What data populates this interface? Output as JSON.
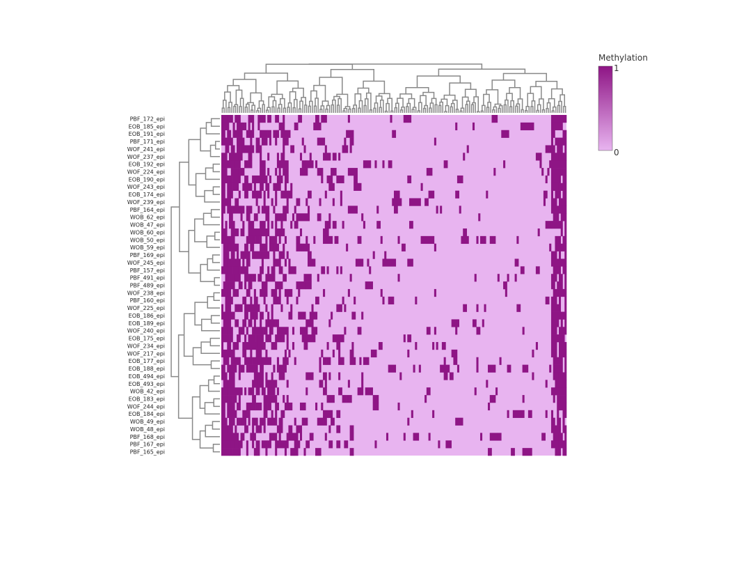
{
  "colors": {
    "low": "#e8b4f0",
    "high": "#8e1585",
    "tree": "#888888",
    "label": "#222222"
  },
  "chart_data": {
    "type": "heatmap",
    "title": "",
    "xlabel": "",
    "ylabel": "",
    "row_labels": [
      "PBF_172_epi",
      "EOB_185_epi",
      "EOB_191_epi",
      "PBF_171_epi",
      "WOF_241_epi",
      "WOF_237_epi",
      "EOB_192_epi",
      "WOF_224_epi",
      "EOB_190_epi",
      "WOF_243_epi",
      "EOB_174_epi",
      "WOF_239_epi",
      "PBF_164_epi",
      "WOB_62_epi",
      "WOB_47_epi",
      "WOB_60_epi",
      "WOB_50_epi",
      "WOB_59_epi",
      "PBF_169_epi",
      "WOF_245_epi",
      "PBF_157_epi",
      "PBF_491_epi",
      "PBF_489_epi",
      "WOF_238_epi",
      "PBF_160_epi",
      "WOF_225_epi",
      "EOB_186_epi",
      "EOB_189_epi",
      "WOF_240_epi",
      "EOB_175_epi",
      "WOF_234_epi",
      "WOF_217_epi",
      "EOB_177_epi",
      "EOB_188_epi",
      "EOB_494_epi",
      "EOB_493_epi",
      "WOB_42_epi",
      "EOB_183_epi",
      "WOF_244_epi",
      "EOB_184_epi",
      "WOB_49_epi",
      "WOB_48_epi",
      "PBF_168_epi",
      "PBF_167_epi",
      "PBF_165_epi"
    ],
    "n_columns": 180,
    "value_range": [
      0,
      1
    ],
    "colorbar": {
      "title": "Methylation",
      "max_label": "1",
      "min_label": "0"
    },
    "row_dendrogram": true,
    "column_dendrogram": true
  }
}
